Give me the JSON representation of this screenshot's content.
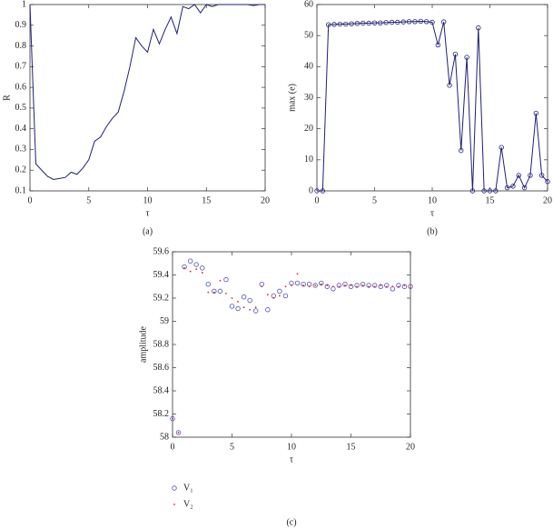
{
  "chart_data": [
    {
      "type": "line",
      "caption": "(a)",
      "xlabel": "τ",
      "ylabel": "R",
      "xlim": [
        0,
        20
      ],
      "xticks": [
        0,
        5,
        10,
        15,
        20
      ],
      "ylim": [
        0.1,
        1
      ],
      "yticks": [
        0.1,
        0.2,
        0.3,
        0.4,
        0.5,
        0.6,
        0.7,
        0.8,
        0.9,
        1
      ],
      "x": [
        0,
        0.5,
        1,
        1.5,
        2,
        2.5,
        3,
        3.5,
        4,
        4.5,
        5,
        5.5,
        6,
        6.5,
        7,
        7.5,
        8,
        8.5,
        9,
        9.5,
        10,
        10.5,
        11,
        11.5,
        12,
        12.5,
        13,
        13.5,
        14,
        14.5,
        15,
        15.5,
        16,
        16.5,
        17,
        17.5,
        18,
        18.5,
        19,
        19.5,
        20
      ],
      "series": [
        {
          "color": "#1f1f7a",
          "marker": "none",
          "values": [
            1.0,
            0.23,
            0.2,
            0.17,
            0.155,
            0.16,
            0.165,
            0.19,
            0.18,
            0.21,
            0.25,
            0.34,
            0.36,
            0.41,
            0.45,
            0.48,
            0.58,
            0.7,
            0.84,
            0.8,
            0.77,
            0.88,
            0.81,
            0.88,
            0.94,
            0.86,
            0.99,
            0.98,
            1.0,
            0.96,
            1.0,
            0.99,
            1.0,
            1.0,
            1.0,
            1.0,
            1.0,
            1.0,
            0.995,
            1.0,
            1.0
          ]
        }
      ]
    },
    {
      "type": "line",
      "caption": "(b)",
      "xlabel": "τ",
      "ylabel": "max (e)",
      "xlim": [
        0,
        20
      ],
      "xticks": [
        0,
        5,
        10,
        15,
        20
      ],
      "ylim": [
        0,
        60
      ],
      "yticks": [
        0,
        10,
        20,
        30,
        40,
        50,
        60
      ],
      "x": [
        0,
        0.5,
        1,
        1.5,
        2,
        2.5,
        3,
        3.5,
        4,
        4.5,
        5,
        5.5,
        6,
        6.5,
        7,
        7.5,
        8,
        8.5,
        9,
        9.5,
        10,
        10.5,
        11,
        11.5,
        12,
        12.5,
        13,
        13.5,
        14,
        14.5,
        15,
        15.5,
        16,
        16.5,
        17,
        17.5,
        18,
        18.5,
        19,
        19.5,
        20
      ],
      "series": [
        {
          "color": "#1f1f7a",
          "marker": "circle",
          "values": [
            0,
            0,
            53.5,
            53.6,
            53.7,
            53.7,
            53.8,
            53.9,
            54,
            54,
            54.1,
            54.1,
            54.2,
            54.3,
            54.3,
            54.4,
            54.5,
            54.5,
            54.6,
            54.5,
            54.3,
            47,
            54.4,
            34,
            44,
            13,
            43,
            0,
            52.5,
            0,
            0,
            0,
            14,
            1,
            1.5,
            5,
            1,
            5,
            25,
            5,
            3
          ]
        }
      ]
    },
    {
      "type": "scatter",
      "caption": "(c)",
      "xlabel": "τ",
      "ylabel": "amplitude",
      "xlim": [
        0,
        20
      ],
      "xticks": [
        0,
        5,
        10,
        15,
        20
      ],
      "ylim": [
        58,
        59.6
      ],
      "yticks": [
        58,
        58.2,
        58.4,
        58.6,
        58.8,
        59,
        59.2,
        59.4,
        59.6
      ],
      "x": [
        0,
        0.5,
        1,
        1.5,
        2,
        2.5,
        3,
        3.5,
        4,
        4.5,
        5,
        5.5,
        6,
        6.5,
        7,
        7.5,
        8,
        8.5,
        9,
        9.5,
        10,
        10.5,
        11,
        11.5,
        12,
        12.5,
        13,
        13.5,
        14,
        14.5,
        15,
        15.5,
        16,
        16.5,
        17,
        17.5,
        18,
        18.5,
        19,
        19.5,
        20
      ],
      "legend": true,
      "series": [
        {
          "name": "V₁",
          "color": "#5050b0",
          "marker": "circle",
          "values": [
            58.16,
            58.04,
            59.47,
            59.52,
            59.49,
            59.46,
            59.32,
            59.26,
            59.26,
            59.36,
            59.13,
            59.11,
            59.21,
            59.18,
            59.09,
            59.32,
            59.1,
            59.22,
            59.26,
            59.22,
            59.33,
            59.33,
            59.32,
            59.32,
            59.31,
            59.33,
            59.3,
            59.28,
            59.31,
            59.32,
            59.3,
            59.31,
            59.32,
            59.31,
            59.31,
            59.3,
            59.31,
            59.28,
            59.31,
            59.3,
            59.3
          ]
        },
        {
          "name": "V₂",
          "color": "#d62728",
          "marker": "dot",
          "values": [
            58.16,
            58.04,
            59.46,
            59.43,
            59.45,
            59.42,
            59.25,
            59.25,
            59.35,
            59.24,
            59.2,
            59.17,
            59.12,
            59.1,
            59.12,
            59.3,
            59.23,
            59.2,
            59.22,
            59.3,
            59.31,
            59.41,
            59.31,
            59.3,
            59.31,
            59.32,
            59.31,
            59.3,
            59.3,
            59.31,
            59.31,
            59.3,
            59.31,
            59.3,
            59.3,
            59.31,
            59.3,
            59.3,
            59.3,
            59.31,
            59.29
          ]
        }
      ]
    }
  ]
}
